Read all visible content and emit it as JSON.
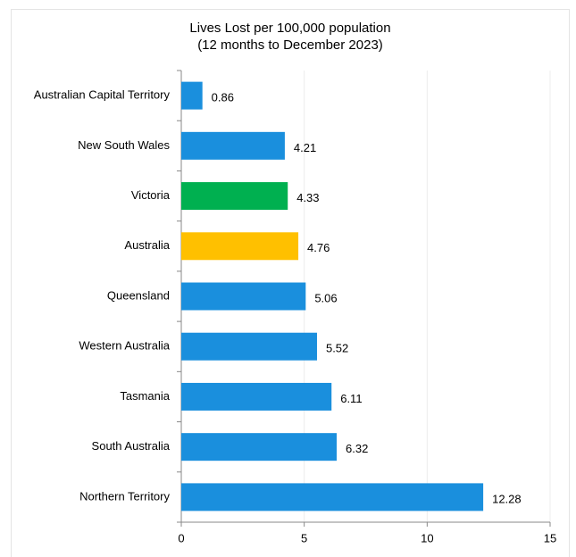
{
  "chart_data": {
    "type": "barh",
    "title": "Lives Lost per 100,000 population",
    "subtitle": "(12 months to December 2023)",
    "categories": [
      "Australian Capital Territory",
      "New South Wales",
      "Victoria",
      "Australia",
      "Queensland",
      "Western Australia",
      "Tasmania",
      "South Australia",
      "Northern Territory"
    ],
    "values": [
      0.86,
      4.21,
      4.33,
      4.76,
      5.06,
      5.52,
      6.11,
      6.32,
      12.28
    ],
    "colors": [
      "#1a8fdd",
      "#1a8fdd",
      "#00b050",
      "#ffc000",
      "#1a8fdd",
      "#1a8fdd",
      "#1a8fdd",
      "#1a8fdd",
      "#1a8fdd"
    ],
    "xlim": [
      0,
      15
    ],
    "xticks": [
      0,
      5,
      10,
      15
    ],
    "grid": true
  }
}
